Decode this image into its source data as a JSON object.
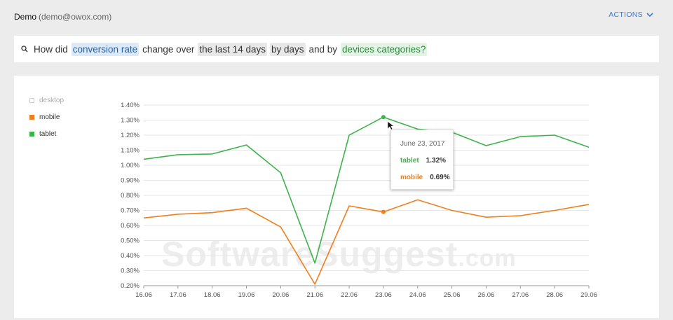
{
  "header": {
    "user_name": "Demo",
    "user_email": "(demo@owox.com)",
    "actions_label": "ACTIONS"
  },
  "query": {
    "icon": "search-icon",
    "parts": [
      {
        "text": "How did",
        "style": "plain"
      },
      {
        "text": "conversion rate",
        "style": "blue"
      },
      {
        "text": "change over",
        "style": "plain"
      },
      {
        "text": "the last 14 days",
        "style": "gray"
      },
      {
        "text": "by days",
        "style": "gray"
      },
      {
        "text": "and by",
        "style": "plain"
      },
      {
        "text": "devices categories?",
        "style": "green"
      }
    ]
  },
  "legend": [
    {
      "name": "desktop",
      "color": "#cccccc",
      "disabled": true
    },
    {
      "name": "mobile",
      "color": "#f07f1e",
      "disabled": false
    },
    {
      "name": "tablet",
      "color": "#3cb44b",
      "disabled": false
    }
  ],
  "tooltip": {
    "date": "June 23, 2017",
    "rows": [
      {
        "label": "tablet",
        "value": "1.32%",
        "color": "#3cb44b"
      },
      {
        "label": "mobile",
        "value": "0.69%",
        "color": "#f07f1e"
      }
    ]
  },
  "watermark": {
    "main": "SoftwareSuggest",
    "suffix": ".com"
  },
  "chart_data": {
    "type": "line",
    "categories": [
      "16.06",
      "17.06",
      "18.06",
      "19.06",
      "20.06",
      "21.06",
      "22.06",
      "23.06",
      "24.06",
      "25.06",
      "26.06",
      "27.06",
      "28.06",
      "29.06"
    ],
    "ylim": [
      0.2,
      1.4
    ],
    "yticks": [
      "0.20%",
      "0.30%",
      "0.40%",
      "0.50%",
      "0.60%",
      "0.70%",
      "0.80%",
      "0.90%",
      "1.00%",
      "1.10%",
      "1.20%",
      "1.30%",
      "1.40%"
    ],
    "grid": true,
    "legend_position": "left",
    "highlight_index": 7,
    "series": [
      {
        "name": "tablet",
        "color": "#3cb44b",
        "values": [
          1.04,
          1.07,
          1.075,
          1.135,
          0.95,
          0.35,
          1.2,
          1.32,
          1.24,
          1.22,
          1.13,
          1.19,
          1.2,
          1.12
        ]
      },
      {
        "name": "mobile",
        "color": "#f07f1e",
        "values": [
          0.65,
          0.675,
          0.685,
          0.715,
          0.59,
          0.21,
          0.73,
          0.69,
          0.77,
          0.7,
          0.655,
          0.665,
          0.7,
          0.74
        ]
      }
    ]
  }
}
